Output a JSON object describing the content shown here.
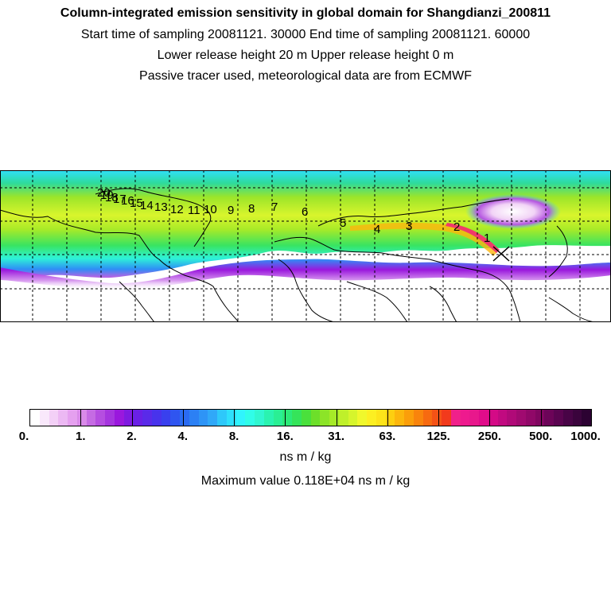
{
  "header": {
    "title": "Column-integrated emission sensitivity in global domain for Shangdianzi_200811",
    "sampling": "Start time of sampling 20081121. 30000      End time of sampling 20081121. 60000",
    "release": "Lower release height   20 m           Upper release height    0 m",
    "note": "Passive tracer used, meteorological data are from ECMWF"
  },
  "map": {
    "trajectory_labels": [
      "1",
      "2",
      "3",
      "4",
      "5",
      "6",
      "7",
      "8",
      "9",
      "10",
      "11",
      "12",
      "13",
      "14",
      "15",
      "16",
      "17",
      "18",
      "19",
      "20"
    ]
  },
  "colorbar": {
    "tick_labels": [
      "0.",
      "1.",
      "2.",
      "4.",
      "8.",
      "16.",
      "31.",
      "63.",
      "125.",
      "250.",
      "500.",
      "1000."
    ],
    "colors": [
      "#ffffff",
      "#f9e8fb",
      "#f3d0f7",
      "#ecb8f3",
      "#e5a0ef",
      "#d98ae9",
      "#c56be3",
      "#b54ee0",
      "#a535de",
      "#9a18dd",
      "#7f1ae0",
      "#6a20e6",
      "#5a2ae9",
      "#4833ec",
      "#3940ee",
      "#2f55f0",
      "#2a6bf2",
      "#2c80f4",
      "#2e94f6",
      "#30a8f8",
      "#2ec8fa",
      "#2ee0fc",
      "#30f4fd",
      "#30fde8",
      "#30f7d0",
      "#2af3b0",
      "#2aef94",
      "#2cea78",
      "#35e45a",
      "#4ae03c",
      "#6ddf2a",
      "#8ce428",
      "#a6ea28",
      "#bff02a",
      "#d6f52c",
      "#f0f82c",
      "#fcef22",
      "#fde41a",
      "#fdcf10",
      "#fcb60c",
      "#fb9e0a",
      "#f9840c",
      "#f76a10",
      "#f45216",
      "#f23a1c",
      "#f0208a",
      "#ee1a8e",
      "#e8188c",
      "#e00c8a",
      "#d40a86",
      "#c10a80",
      "#b00a78",
      "#a00a70",
      "#900868",
      "#800660",
      "#6c0458",
      "#5a0450",
      "#480446",
      "#3a043c",
      "#2c0232"
    ],
    "unit": "ns m / kg",
    "maximum": "Maximum value  0.118E+04 ns m / kg"
  }
}
